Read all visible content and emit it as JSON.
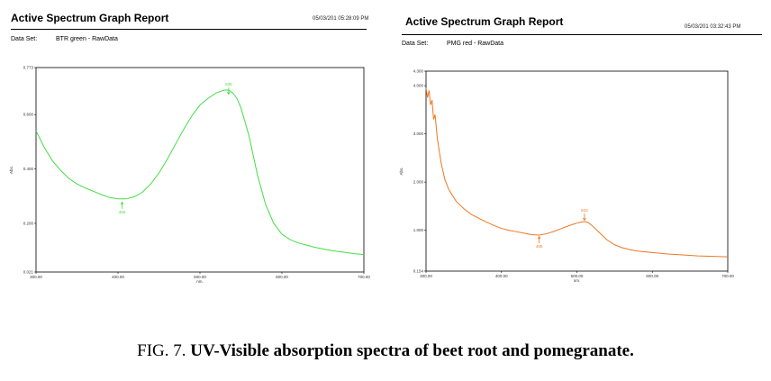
{
  "report_title": "Active Spectrum Graph Report",
  "dataset_label": "Data Set:",
  "caption": {
    "prefix": "FIG. 7. ",
    "text": "UV-Visible absorption spectra of beet root and pomegranate."
  },
  "colors": {
    "left_series": "#44dd44",
    "right_series": "#ee7722",
    "frame": "#000000"
  },
  "chart_data": [
    {
      "type": "line",
      "date": "05/03/201   05:28:09 PM",
      "dataset": "BTR green - RawData",
      "xlabel": "nm.",
      "ylabel": "Abs.",
      "xlim": [
        300,
        700
      ],
      "ylim": [
        0.021,
        0.773
      ],
      "xticks": [
        300,
        400,
        500,
        600,
        700
      ],
      "xtick_labels": [
        "300.00",
        "400.00",
        "500.00",
        "600.00",
        "700.00"
      ],
      "yticks": [
        0.021,
        0.2,
        0.4,
        0.6,
        0.773
      ],
      "ytick_labels": [
        "0.021",
        "0.200",
        "0.400",
        "0.600",
        "0.773"
      ],
      "peak_labels": [
        {
          "x": 535,
          "y": 0.67,
          "label": "535",
          "arrow": "down"
        },
        {
          "x": 405,
          "y": 0.283,
          "label": "405",
          "arrow": "up"
        }
      ],
      "series": [
        {
          "color": "#44dd44",
          "x": [
            300,
            310,
            320,
            330,
            340,
            350,
            360,
            370,
            380,
            390,
            400,
            410,
            420,
            430,
            440,
            450,
            460,
            470,
            480,
            490,
            500,
            510,
            520,
            530,
            535,
            540,
            545,
            550,
            560,
            570,
            580,
            590,
            600,
            610,
            620,
            630,
            640,
            650,
            660,
            670,
            680,
            690,
            700
          ],
          "y": [
            0.54,
            0.48,
            0.43,
            0.395,
            0.365,
            0.345,
            0.33,
            0.318,
            0.305,
            0.295,
            0.29,
            0.29,
            0.298,
            0.315,
            0.345,
            0.385,
            0.435,
            0.49,
            0.545,
            0.595,
            0.635,
            0.66,
            0.68,
            0.69,
            0.69,
            0.68,
            0.66,
            0.625,
            0.52,
            0.38,
            0.27,
            0.2,
            0.16,
            0.14,
            0.128,
            0.12,
            0.112,
            0.106,
            0.1,
            0.096,
            0.092,
            0.088,
            0.085
          ]
        }
      ]
    },
    {
      "type": "line",
      "date": "05/03/201   03:32:43 PM",
      "dataset": "PMG red - RawData",
      "xlabel": "nm.",
      "ylabel": "Abs.",
      "xlim": [
        300,
        700
      ],
      "ylim": [
        0.154,
        4.3
      ],
      "xticks": [
        300,
        400,
        500,
        600,
        700
      ],
      "xtick_labels": [
        "300.00",
        "400.00",
        "500.00",
        "600.00",
        "700.00"
      ],
      "yticks": [
        0.154,
        1,
        2,
        3,
        4,
        4.3
      ],
      "ytick_labels": [
        "0.154",
        "1.000",
        "2.000",
        "3.000",
        "4.000",
        "4.300"
      ],
      "peak_labels": [
        {
          "x": 510,
          "y": 1.18,
          "label": "510",
          "arrow": "down"
        },
        {
          "x": 450,
          "y": 0.9,
          "label": "450",
          "arrow": "up"
        }
      ],
      "series": [
        {
          "color": "#ee7722",
          "x": [
            300,
            302,
            304,
            306,
            308,
            310,
            312,
            315,
            318,
            320,
            325,
            330,
            340,
            350,
            360,
            370,
            380,
            390,
            400,
            410,
            420,
            430,
            440,
            450,
            460,
            470,
            480,
            490,
            500,
            505,
            510,
            515,
            520,
            530,
            540,
            550,
            560,
            570,
            580,
            600,
            620,
            640,
            660,
            680,
            700
          ],
          "y": [
            3.95,
            3.75,
            3.9,
            3.6,
            3.7,
            3.3,
            3.4,
            2.9,
            2.6,
            2.4,
            2.05,
            1.85,
            1.6,
            1.45,
            1.33,
            1.25,
            1.17,
            1.1,
            1.04,
            1.0,
            0.97,
            0.94,
            0.91,
            0.9,
            0.93,
            0.98,
            1.04,
            1.1,
            1.15,
            1.17,
            1.18,
            1.16,
            1.1,
            0.95,
            0.8,
            0.7,
            0.64,
            0.6,
            0.57,
            0.54,
            0.51,
            0.49,
            0.47,
            0.46,
            0.45
          ]
        }
      ]
    }
  ]
}
